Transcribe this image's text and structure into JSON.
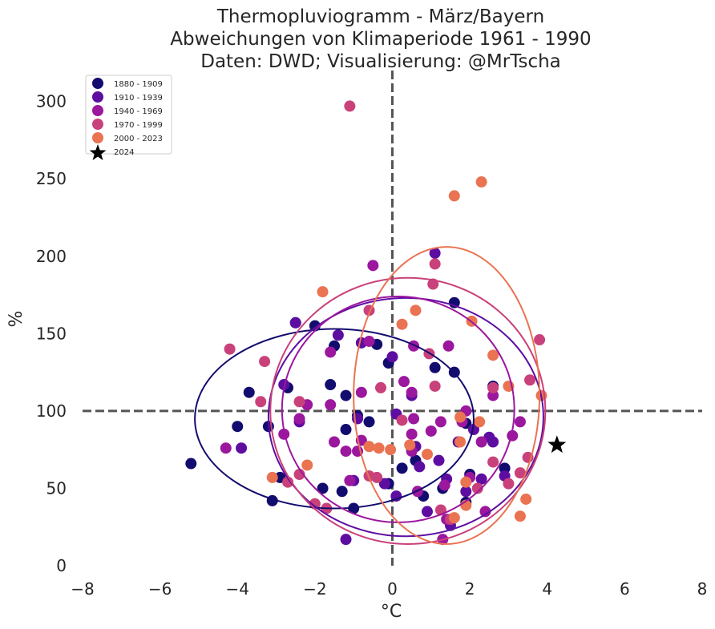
{
  "chart_data": {
    "type": "scatter",
    "title": "Thermopluviogramm - März/Bayern",
    "subtitle_lines": [
      "Abweichungen von Klimaperiode 1961 - 1990",
      "Daten: DWD; Visualisierung: @MrTscha"
    ],
    "xlabel": "°C",
    "ylabel": "%",
    "xlim": [
      -8,
      8
    ],
    "ylim": [
      0,
      320
    ],
    "xticks": [
      -8,
      -6,
      -4,
      -2,
      0,
      2,
      4,
      6,
      8
    ],
    "yticks": [
      0,
      50,
      100,
      150,
      200,
      250,
      300
    ],
    "grid": false,
    "legend_position": "top-left",
    "reference_lines": {
      "x": 0,
      "y": 100,
      "style": "dashed",
      "color": "#555555"
    },
    "series": [
      {
        "name": "1880 - 1909",
        "color": "#130c6f",
        "points": [
          [
            -5.2,
            66
          ],
          [
            -3.7,
            112
          ],
          [
            -3.2,
            90
          ],
          [
            -3.1,
            42
          ],
          [
            -2.7,
            115
          ],
          [
            -2.5,
            157
          ],
          [
            -2.0,
            155
          ],
          [
            -1.6,
            117
          ],
          [
            -1.8,
            50
          ],
          [
            -1.5,
            142
          ],
          [
            -1.3,
            48
          ],
          [
            -1.2,
            88
          ],
          [
            -1.2,
            110
          ],
          [
            -1.0,
            37
          ],
          [
            -0.9,
            97
          ],
          [
            -0.6,
            93
          ],
          [
            -0.4,
            143
          ],
          [
            -0.1,
            131
          ],
          [
            0.25,
            63
          ],
          [
            0.5,
            75
          ],
          [
            0.6,
            68
          ],
          [
            0.8,
            45
          ],
          [
            1.1,
            128
          ],
          [
            1.3,
            50
          ],
          [
            1.6,
            125
          ],
          [
            1.6,
            170
          ],
          [
            1.9,
            41
          ],
          [
            1.9,
            92
          ],
          [
            2.0,
            59
          ],
          [
            2.6,
            116
          ],
          [
            2.9,
            63
          ],
          [
            -4.0,
            90
          ],
          [
            -2.9,
            57
          ],
          [
            -0.1,
            53
          ]
        ]
      },
      {
        "name": "1910 - 1939",
        "color": "#5d0ea1",
        "points": [
          [
            -3.9,
            76
          ],
          [
            -2.5,
            157
          ],
          [
            -2.8,
            117
          ],
          [
            -2.4,
            93
          ],
          [
            -1.4,
            149
          ],
          [
            -1.2,
            17
          ],
          [
            -1.0,
            55
          ],
          [
            -0.8,
            144
          ],
          [
            -0.2,
            53
          ],
          [
            0.1,
            45
          ],
          [
            0.5,
            110
          ],
          [
            0.6,
            77
          ],
          [
            0.7,
            64
          ],
          [
            0.9,
            35
          ],
          [
            1.1,
            202
          ],
          [
            1.2,
            68
          ],
          [
            1.4,
            56
          ],
          [
            1.5,
            26
          ],
          [
            1.7,
            80
          ],
          [
            1.9,
            48
          ],
          [
            2.1,
            88
          ],
          [
            2.3,
            56
          ],
          [
            2.5,
            83
          ],
          [
            2.6,
            80
          ],
          [
            2.9,
            58
          ],
          [
            0.0,
            135
          ],
          [
            0.1,
            98
          ],
          [
            -0.9,
            95
          ]
        ]
      },
      {
        "name": "1940 - 1969",
        "color": "#9b179e",
        "points": [
          [
            -4.3,
            76
          ],
          [
            -2.8,
            85
          ],
          [
            -2.4,
            95
          ],
          [
            -2.2,
            104
          ],
          [
            -1.6,
            138
          ],
          [
            -1.6,
            104
          ],
          [
            -1.5,
            80
          ],
          [
            -1.2,
            74
          ],
          [
            -0.8,
            112
          ],
          [
            -0.9,
            74
          ],
          [
            -0.8,
            81
          ],
          [
            -0.6,
            145
          ],
          [
            -0.5,
            194
          ],
          [
            0.3,
            119
          ],
          [
            0.5,
            85
          ],
          [
            0.5,
            112
          ],
          [
            0.55,
            142
          ],
          [
            0.55,
            95
          ],
          [
            0.65,
            48
          ],
          [
            1.0,
            87
          ],
          [
            1.25,
            93
          ],
          [
            1.35,
            52
          ],
          [
            1.45,
            142
          ],
          [
            1.8,
            93
          ],
          [
            1.9,
            100
          ],
          [
            2.0,
            57
          ],
          [
            2.3,
            80
          ],
          [
            2.4,
            35
          ],
          [
            2.6,
            110
          ],
          [
            3.1,
            84
          ],
          [
            3.3,
            93
          ],
          [
            -1.1,
            55
          ],
          [
            1.3,
            17
          ],
          [
            1.4,
            30
          ],
          [
            0.5,
            74
          ]
        ]
      },
      {
        "name": "1970 - 1999",
        "color": "#c9417a",
        "points": [
          [
            -4.2,
            140
          ],
          [
            -3.4,
            106
          ],
          [
            -3.3,
            132
          ],
          [
            -2.7,
            54
          ],
          [
            -2.4,
            106
          ],
          [
            -2.4,
            59
          ],
          [
            -2.0,
            40
          ],
          [
            -1.7,
            37
          ],
          [
            -1.1,
            297
          ],
          [
            -0.6,
            165
          ],
          [
            -0.6,
            58
          ],
          [
            -0.3,
            115
          ],
          [
            -0.4,
            57
          ],
          [
            0.25,
            94
          ],
          [
            0.95,
            137
          ],
          [
            1.05,
            182
          ],
          [
            1.1,
            195
          ],
          [
            1.1,
            116
          ],
          [
            1.25,
            36
          ],
          [
            1.5,
            30
          ],
          [
            2.2,
            50
          ],
          [
            2.6,
            115
          ],
          [
            2.6,
            67
          ],
          [
            3.0,
            53
          ],
          [
            3.3,
            60
          ],
          [
            3.8,
            146
          ],
          [
            3.5,
            70
          ],
          [
            3.55,
            120
          ]
        ]
      },
      {
        "name": "2000 - 2023",
        "color": "#ea7352",
        "points": [
          [
            -1.8,
            177
          ],
          [
            -2.2,
            65
          ],
          [
            -3.1,
            57
          ],
          [
            -0.6,
            77
          ],
          [
            -0.35,
            76
          ],
          [
            -0.05,
            75
          ],
          [
            0.25,
            156
          ],
          [
            0.45,
            78
          ],
          [
            0.6,
            165
          ],
          [
            0.9,
            72
          ],
          [
            1.6,
            239
          ],
          [
            1.6,
            31
          ],
          [
            1.75,
            96
          ],
          [
            1.75,
            80
          ],
          [
            1.9,
            54
          ],
          [
            1.9,
            39
          ],
          [
            2.05,
            158
          ],
          [
            2.25,
            93
          ],
          [
            2.3,
            248
          ],
          [
            2.6,
            136
          ],
          [
            3.0,
            116
          ],
          [
            3.3,
            32
          ],
          [
            3.45,
            43
          ],
          [
            3.85,
            110
          ]
        ]
      },
      {
        "name": "2024",
        "color": "#000000",
        "marker": "star",
        "points": [
          [
            4.25,
            78
          ]
        ]
      }
    ],
    "ellipses": [
      {
        "series": "1880 - 1909",
        "center": [
          -1.5,
          95
        ],
        "radius_x": 3.6,
        "radius_y": 58
      },
      {
        "series": "1910 - 1939",
        "center": [
          0.35,
          96
        ],
        "radius_x": 3.55,
        "radius_y": 77
      },
      {
        "series": "1940 - 1969",
        "center": [
          0.15,
          101
        ],
        "radius_x": 3.0,
        "radius_y": 73
      },
      {
        "series": "1970 - 1999",
        "center": [
          0.4,
          100
        ],
        "radius_x": 3.55,
        "radius_y": 86
      },
      {
        "series": "2000 - 2023",
        "center": [
          1.4,
          110
        ],
        "radius_x": 2.4,
        "radius_y": 96
      }
    ]
  }
}
